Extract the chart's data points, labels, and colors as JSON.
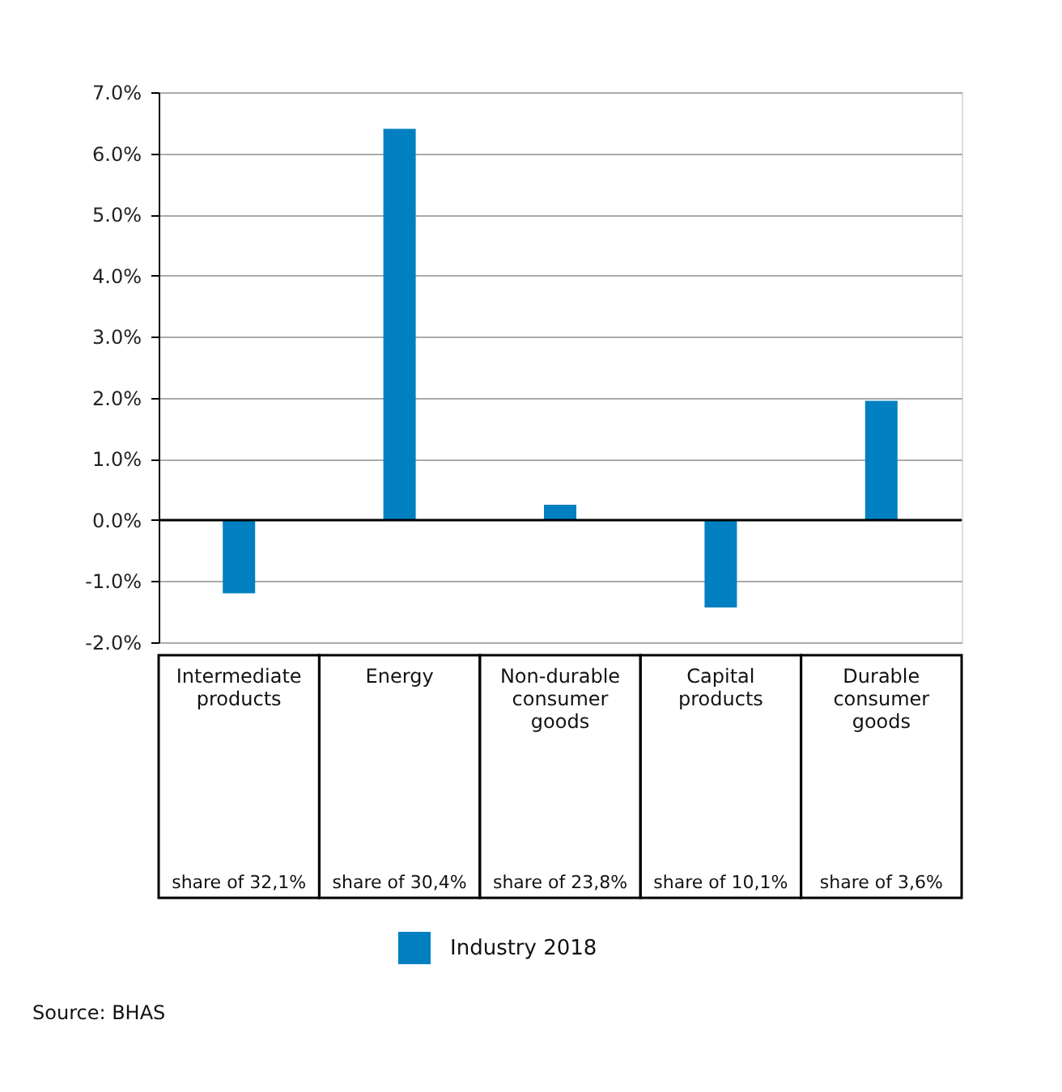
{
  "chart_data": {
    "type": "bar",
    "categories": [
      "Intermediate products",
      "Energy",
      "Non-durable consumer goods",
      "Capital products",
      "Durable consumer goods"
    ],
    "series": [
      {
        "name": "Industry 2018",
        "color": "#0080c0",
        "values": [
          -1.2,
          6.4,
          0.25,
          -1.43,
          1.95
        ]
      }
    ],
    "ylim": [
      -2,
      7
    ],
    "yticks": [
      {
        "value": -2,
        "label": "-2.0%"
      },
      {
        "value": -1,
        "label": "-1.0%"
      },
      {
        "value": 0,
        "label": "0.0%"
      },
      {
        "value": 1,
        "label": "1.0%"
      },
      {
        "value": 2,
        "label": "2.0%"
      },
      {
        "value": 3,
        "label": "3.0%"
      },
      {
        "value": 4,
        "label": "4.0%"
      },
      {
        "value": 5,
        "label": "5.0%"
      },
      {
        "value": 6,
        "label": "6.0%"
      },
      {
        "value": 7,
        "label": "7.0%"
      }
    ],
    "grid": "y",
    "legend": "bottom",
    "annotations": [
      "share of 32,1%",
      "share of 30,4%",
      "share of 23,8%",
      "share of 10,1%",
      "share of 3,6%",
      "Source: BHAS"
    ]
  }
}
